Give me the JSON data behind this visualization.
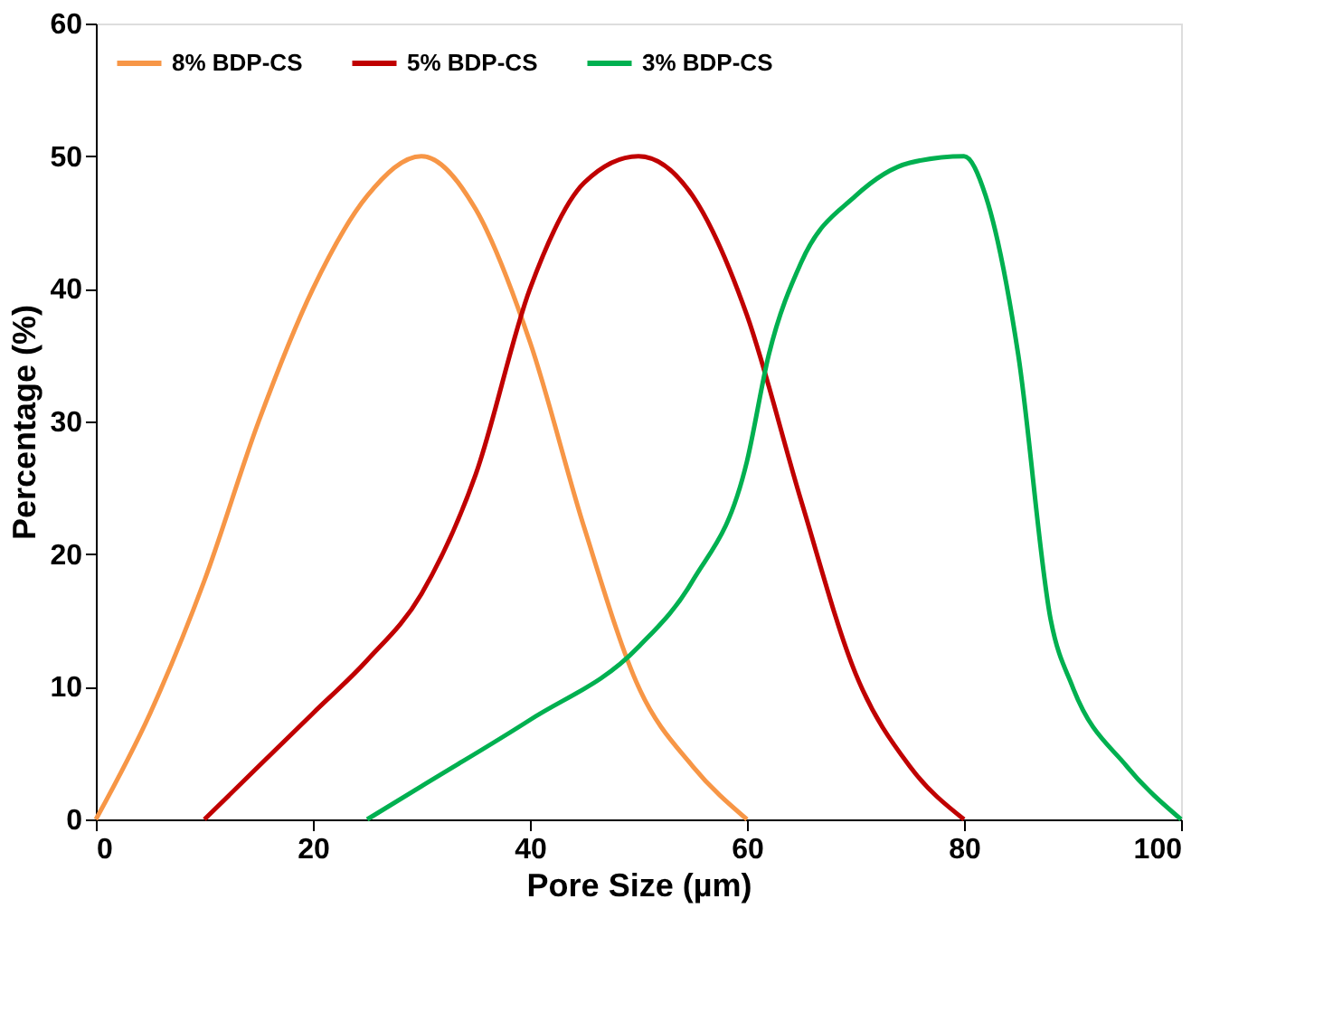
{
  "chart_data": {
    "type": "line",
    "xlabel": "Pore Size (µm)",
    "ylabel": "Percentage (%)",
    "xlim": [
      0,
      100
    ],
    "ylim": [
      0,
      60
    ],
    "xticks": [
      0,
      20,
      40,
      60,
      80,
      100
    ],
    "yticks": [
      0,
      10,
      20,
      30,
      40,
      50,
      60
    ],
    "grid": false,
    "legend": "top",
    "marker": "none",
    "line_style": "solid",
    "series": [
      {
        "name": "8% BDP-CS",
        "color": "#f79646",
        "x": [
          0,
          5,
          10,
          15,
          20,
          25,
          30,
          35,
          40,
          45,
          50,
          55,
          60
        ],
        "values": [
          0,
          8,
          18,
          30,
          40,
          47,
          50,
          46,
          36,
          22,
          10,
          4,
          0
        ]
      },
      {
        "name": "5% BDP-CS",
        "color": "#c00000",
        "x": [
          10,
          15,
          20,
          25,
          30,
          35,
          40,
          45,
          50,
          55,
          60,
          65,
          70,
          75,
          80
        ],
        "values": [
          0,
          4,
          8,
          12,
          17,
          26,
          40,
          48,
          50,
          47,
          38,
          24,
          11,
          4,
          0
        ]
      },
      {
        "name": "3% BDP-CS",
        "color": "#00b050",
        "x": [
          25,
          30,
          40,
          50,
          55,
          60,
          62,
          65,
          70,
          75,
          80,
          82,
          85,
          88,
          90,
          95,
          100
        ],
        "values": [
          0,
          2.5,
          7.5,
          13,
          18,
          27,
          35,
          42,
          47,
          49.5,
          50,
          47,
          35,
          15,
          10,
          4,
          0
        ]
      }
    ]
  }
}
